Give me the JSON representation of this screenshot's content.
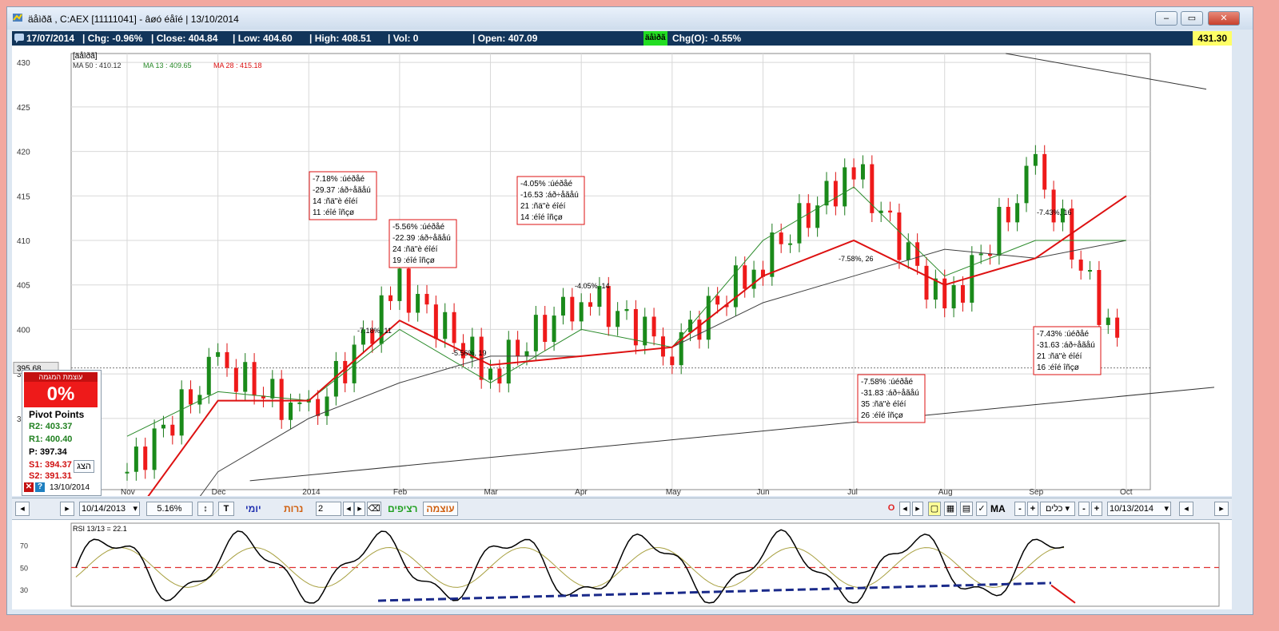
{
  "window": {
    "title": "äåìðã , C:AEX  [11111041]  - âøó éåîé | 13/10/2014",
    "controls": [
      "‒",
      "▭",
      "✕"
    ]
  },
  "infobar": {
    "date": "17/07/2014",
    "chg": "| Chg: -0.96%",
    "close": "| Close: 404.84",
    "low": "| Low: 404.60",
    "high": "| High: 408.51",
    "vol": "| Vol: 0",
    "open": "| Open: 407.09",
    "tag": "äåìðã",
    "chgo": "Chg(O): -0.55%",
    "last": "431.30"
  },
  "chart": {
    "symbol_label": "[äåìðã]",
    "ma_labels": [
      "MA 50 : 410.12",
      "MA 13 : 409.65",
      "MA 28 : 415.18"
    ],
    "ma_colors": [
      "#303030",
      "#2a8a2a",
      "#dd1111"
    ],
    "y_ticks": [
      "430",
      "425",
      "420",
      "415",
      "410",
      "405",
      "400",
      "395",
      "390"
    ],
    "current_level": "395.68",
    "x_ticks": [
      "Nov",
      "Dec",
      "2014",
      "Feb",
      "Mar",
      "Apr",
      "May",
      "Jun",
      "Jul",
      "Aug",
      "Sep",
      "Oct"
    ],
    "annotations": [
      {
        "lines": [
          "-7.18% :úéðåé",
          "-29.37 :áð÷åãåú",
          "14 :ñä\"è éîéí",
          "11 :éîé îñçø"
        ],
        "short": "-7.18%, 11"
      },
      {
        "lines": [
          "-5.56% :úéðåé",
          "-22.39 :áð÷åãåú",
          "24 :ñä\"è éîéí",
          "19 :éîé îñçø"
        ],
        "short": "-5.56%, 19"
      },
      {
        "lines": [
          "-4.05% :úéðåé",
          "-16.53 :áð÷åãåú",
          "21 :ñä\"è éîéí",
          "14 :éîé îñçø"
        ],
        "short": "-4.05%, 14"
      },
      {
        "lines": [
          "-7.58% :úéðåé",
          "-31.83 :áð÷åãåú",
          "35 :ñä\"è éîéí",
          "26 :éîé îñçø"
        ],
        "short": "-7.58%, 26"
      },
      {
        "lines": [
          "-7.43% :úéðåé",
          "-31.63 :áð÷åãåú",
          "21 :ñä\"è éîéí",
          "16 :éîé îñçø"
        ],
        "short": "-7.43%, 16"
      }
    ]
  },
  "pivot": {
    "header": "עוצמת המגמה",
    "strength": "0%",
    "title": "Pivot Points",
    "r2": "R2: 403.37",
    "r1": "R1: 400.40",
    "p": "P: 397.34",
    "s1": "S1: 394.37",
    "s2": "S2: 391.31",
    "show_button": "הצג",
    "date": "13/10/2014"
  },
  "controls": {
    "start_date": "10/14/2013",
    "percent": "5.16%",
    "t_button": "T",
    "daily": "יומי",
    "candles": "נרות",
    "spin_value": "2",
    "continuous": "רציפים",
    "strength": "עוצמה",
    "o_button": "O",
    "ma_label": "MA",
    "tools_select": "כלים",
    "end_date": "10/13/2014"
  },
  "rsi": {
    "label": "RSI 13/13 = 22.1",
    "y_ticks": [
      "70",
      "50",
      "30"
    ]
  },
  "chart_data": {
    "type": "line",
    "title": "AEX",
    "x": [
      "Nov",
      "Dec",
      "2014",
      "Feb",
      "Mar",
      "Apr",
      "May",
      "Jun",
      "Jul",
      "Aug",
      "Sep",
      "Oct"
    ],
    "series": [
      {
        "name": "Close",
        "values": [
          384,
          396,
          390,
          405,
          395,
          404,
          398,
          408,
          418,
          402,
          418,
          396
        ]
      },
      {
        "name": "MA 50",
        "values": [
          370,
          384,
          390,
          394,
          397,
          397,
          398,
          403,
          406,
          409,
          408,
          410
        ]
      },
      {
        "name": "MA 13",
        "values": [
          388,
          393,
          392,
          400,
          394,
          400,
          398,
          410,
          416,
          406,
          410,
          410
        ]
      },
      {
        "name": "MA 28",
        "values": [
          378,
          392,
          392,
          401,
          396,
          397,
          398,
          406,
          410,
          405,
          408,
          415
        ]
      }
    ],
    "ylim": [
      382,
      431
    ],
    "grid": true
  }
}
